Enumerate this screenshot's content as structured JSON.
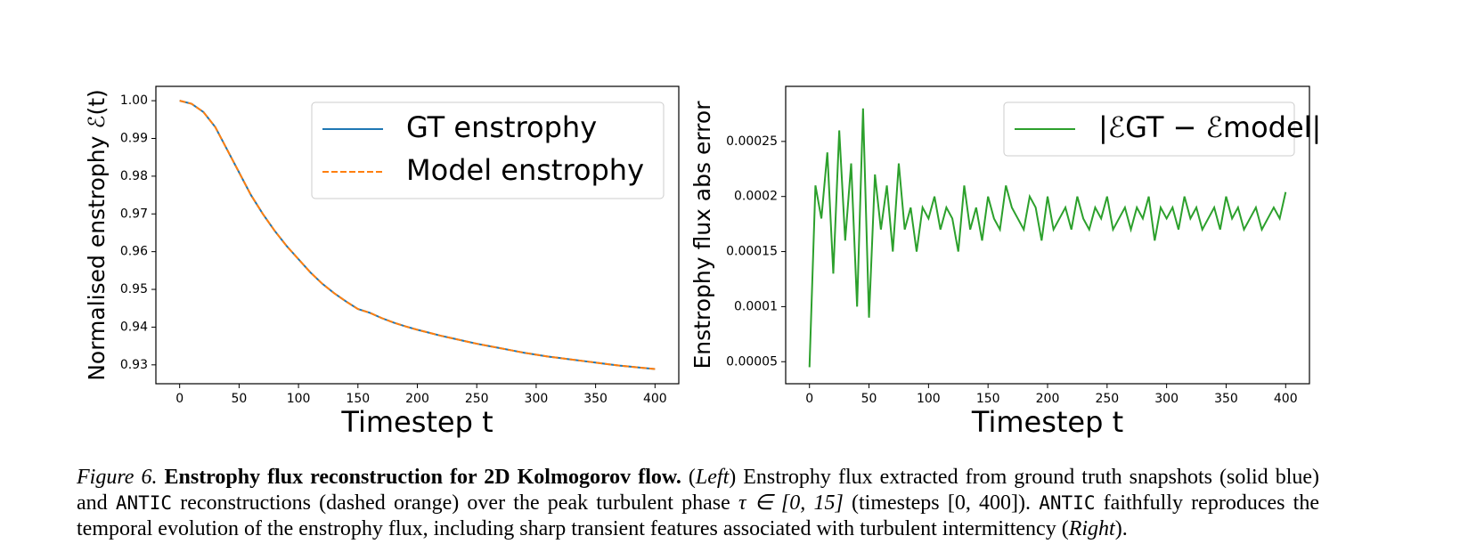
{
  "chart_data": [
    {
      "type": "line",
      "ylabel": "Normalised enstrophy ℰ(t)",
      "xlabel": "Timestep t",
      "x": [
        0,
        10,
        20,
        30,
        40,
        50,
        60,
        70,
        80,
        90,
        100,
        110,
        120,
        130,
        140,
        150,
        160,
        170,
        180,
        190,
        200,
        210,
        220,
        230,
        240,
        250,
        260,
        270,
        280,
        290,
        300,
        310,
        320,
        330,
        340,
        350,
        360,
        370,
        380,
        390,
        400
      ],
      "series": [
        {
          "name": "GT enstrophy",
          "color": "#1f77b4",
          "dash": false,
          "values": [
            1.0,
            0.9992,
            0.997,
            0.993,
            0.987,
            0.981,
            0.975,
            0.97,
            0.9655,
            0.9615,
            0.958,
            0.9545,
            0.9515,
            0.949,
            0.9468,
            0.9448,
            0.9438,
            0.9424,
            0.9412,
            0.9402,
            0.9393,
            0.9385,
            0.9377,
            0.937,
            0.9363,
            0.9356,
            0.935,
            0.9344,
            0.9338,
            0.9332,
            0.9327,
            0.9322,
            0.9318,
            0.9314,
            0.931,
            0.9306,
            0.9302,
            0.9298,
            0.9295,
            0.9292,
            0.9289
          ]
        },
        {
          "name": "Model enstrophy",
          "color": "#ff7f0e",
          "dash": true,
          "values": [
            1.0,
            0.9992,
            0.997,
            0.993,
            0.987,
            0.981,
            0.975,
            0.97,
            0.9655,
            0.9615,
            0.958,
            0.9545,
            0.9515,
            0.949,
            0.9468,
            0.9448,
            0.9438,
            0.9424,
            0.9412,
            0.9402,
            0.9393,
            0.9385,
            0.9377,
            0.937,
            0.9363,
            0.9356,
            0.935,
            0.9344,
            0.9338,
            0.9332,
            0.9327,
            0.9322,
            0.9318,
            0.9314,
            0.931,
            0.9306,
            0.9302,
            0.9298,
            0.9295,
            0.9292,
            0.9289
          ]
        }
      ],
      "xlim": [
        -20,
        420
      ],
      "xticks": [
        0,
        50,
        100,
        150,
        200,
        250,
        300,
        350,
        400
      ],
      "ylim": [
        0.925,
        1.0038
      ],
      "yticks": [
        {
          "value": 1.0,
          "label": "1.00"
        },
        0.99,
        0.98,
        0.97,
        0.96,
        0.95,
        0.94,
        0.93
      ],
      "legend": "upper right"
    },
    {
      "type": "line",
      "ylabel": "Enstrophy flux abs error",
      "xlabel": "Timestep t",
      "x": [
        0,
        5,
        10,
        15,
        20,
        25,
        30,
        35,
        40,
        45,
        50,
        55,
        60,
        65,
        70,
        75,
        80,
        85,
        90,
        95,
        100,
        105,
        110,
        115,
        120,
        125,
        130,
        135,
        140,
        145,
        150,
        155,
        160,
        165,
        170,
        175,
        180,
        185,
        190,
        195,
        200,
        205,
        210,
        215,
        220,
        225,
        230,
        235,
        240,
        245,
        250,
        255,
        260,
        265,
        270,
        275,
        280,
        285,
        290,
        295,
        300,
        305,
        310,
        315,
        320,
        325,
        330,
        335,
        340,
        345,
        350,
        355,
        360,
        365,
        370,
        375,
        380,
        385,
        390,
        395,
        400
      ],
      "series": [
        {
          "name": "|ℰGT − ℰmodel|",
          "color": "#2ca02c",
          "dash": false,
          "values": [
            4.5e-05,
            0.00021,
            0.00018,
            0.00024,
            0.00013,
            0.00026,
            0.00016,
            0.00023,
            0.0001,
            0.00028,
            9e-05,
            0.00022,
            0.00017,
            0.00021,
            0.00015,
            0.00023,
            0.00017,
            0.00019,
            0.00015,
            0.00019,
            0.00018,
            0.0002,
            0.00017,
            0.00019,
            0.00018,
            0.00015,
            0.00021,
            0.00017,
            0.00019,
            0.00016,
            0.0002,
            0.00018,
            0.00017,
            0.00021,
            0.00019,
            0.00018,
            0.00017,
            0.0002,
            0.00019,
            0.00016,
            0.0002,
            0.00017,
            0.00018,
            0.00019,
            0.00017,
            0.0002,
            0.00018,
            0.00017,
            0.00019,
            0.00018,
            0.0002,
            0.00017,
            0.00018,
            0.00019,
            0.00017,
            0.00019,
            0.00018,
            0.0002,
            0.00016,
            0.00019,
            0.00018,
            0.00019,
            0.00017,
            0.0002,
            0.00018,
            0.00019,
            0.00017,
            0.00018,
            0.00019,
            0.00017,
            0.0002,
            0.00018,
            0.00019,
            0.00017,
            0.00018,
            0.00019,
            0.00017,
            0.00018,
            0.00019,
            0.00018,
            0.000204
          ]
        }
      ],
      "xlim": [
        -20,
        420
      ],
      "xticks": [
        0,
        50,
        100,
        150,
        200,
        250,
        300,
        350,
        400
      ],
      "ylim": [
        3e-05,
        0.0003
      ],
      "yticks": [
        5e-05,
        0.0001,
        0.00015,
        0.0002,
        0.00025
      ],
      "legend": "upper right"
    }
  ],
  "caption": {
    "segments": [
      "Figure 6.",
      " Enstrophy flux reconstruction for 2D Kolmogorov flow.",
      " (",
      "Left",
      ") Enstrophy flux extracted from ground truth snapshots (solid blue) and ",
      "ANTIC",
      " reconstructions (dashed orange) over the peak turbulent phase ",
      "τ ∈ [0, 15]",
      " (timesteps ",
      "[0, 400]",
      "). ",
      "ANTIC",
      " faithfully reproduces the temporal evolution of the enstrophy flux, including sharp transient features associated with turbulent intermittency (",
      "Right",
      ")."
    ]
  }
}
